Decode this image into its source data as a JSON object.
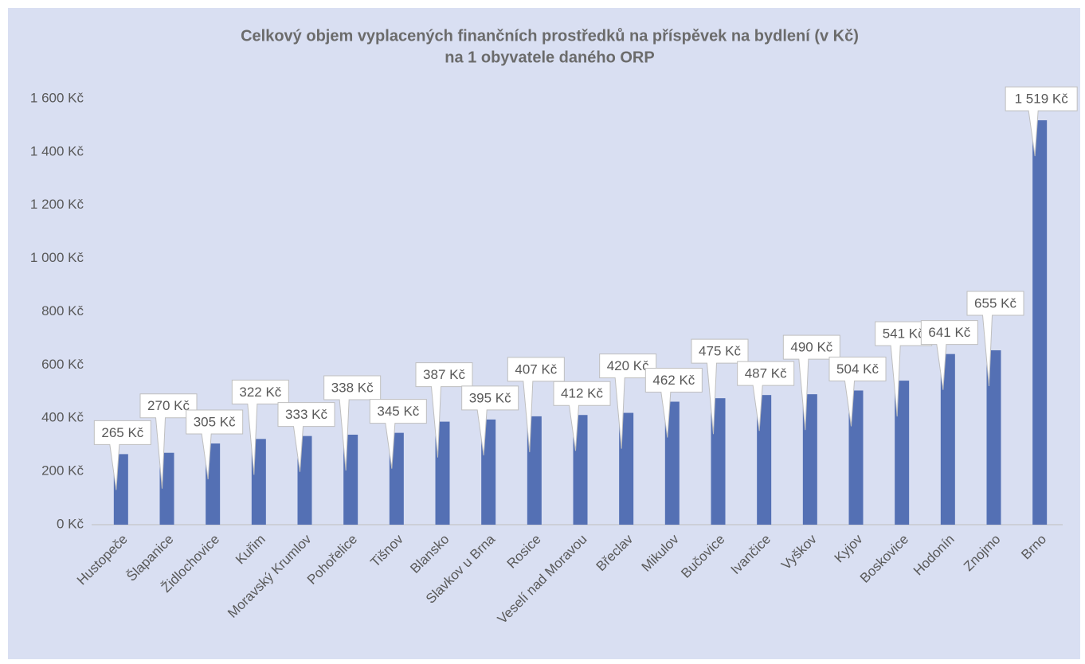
{
  "chart_data": {
    "type": "bar",
    "title": "Celkový objem vyplacených finančních prostředků na příspěvek na bydlení (v Kč)",
    "subtitle": "na 1 obyvatele daného ORP",
    "categories": [
      "Hustopeče",
      "Šlapanice",
      "Židlochovice",
      "Kuřim",
      "Moravský Krumlov",
      "Pohořelice",
      "Tišnov",
      "Blansko",
      "Slavkov u Brna",
      "Rosice",
      "Veselí nad Moravou",
      "Břeclav",
      "Mikulov",
      "Bučovice",
      "Ivančice",
      "Vyškov",
      "Kyjov",
      "Boskovice",
      "Hodonín",
      "Znojmo",
      "Brno"
    ],
    "values": [
      265,
      270,
      305,
      322,
      333,
      338,
      345,
      387,
      395,
      407,
      412,
      420,
      462,
      475,
      487,
      490,
      504,
      541,
      641,
      655,
      1519
    ],
    "value_labels": [
      "265 Kč",
      "270 Kč",
      "305 Kč",
      "322 Kč",
      "333 Kč",
      "338 Kč",
      "345 Kč",
      "387 Kč",
      "395 Kč",
      "407 Kč",
      "412 Kč",
      "420 Kč",
      "462 Kč",
      "475 Kč",
      "487 Kč",
      "490 Kč",
      "504 Kč",
      "541 Kč",
      "641 Kč",
      "655 Kč",
      "1 519 Kč"
    ],
    "color": "#5470b4",
    "ylim": [
      0,
      1600
    ],
    "yticks": [
      {
        "value": 0,
        "label": "0 Kč"
      },
      {
        "value": 200,
        "label": "200 Kč"
      },
      {
        "value": 400,
        "label": "400 Kč"
      },
      {
        "value": 600,
        "label": "600 Kč"
      },
      {
        "value": 800,
        "label": "800 Kč"
      },
      {
        "value": 1000,
        "label": "1 000 Kč"
      },
      {
        "value": 1200,
        "label": "1 200 Kč"
      },
      {
        "value": 1400,
        "label": "1 400 Kč"
      },
      {
        "value": 1600,
        "label": "1 600 Kč"
      }
    ],
    "grid": false
  }
}
